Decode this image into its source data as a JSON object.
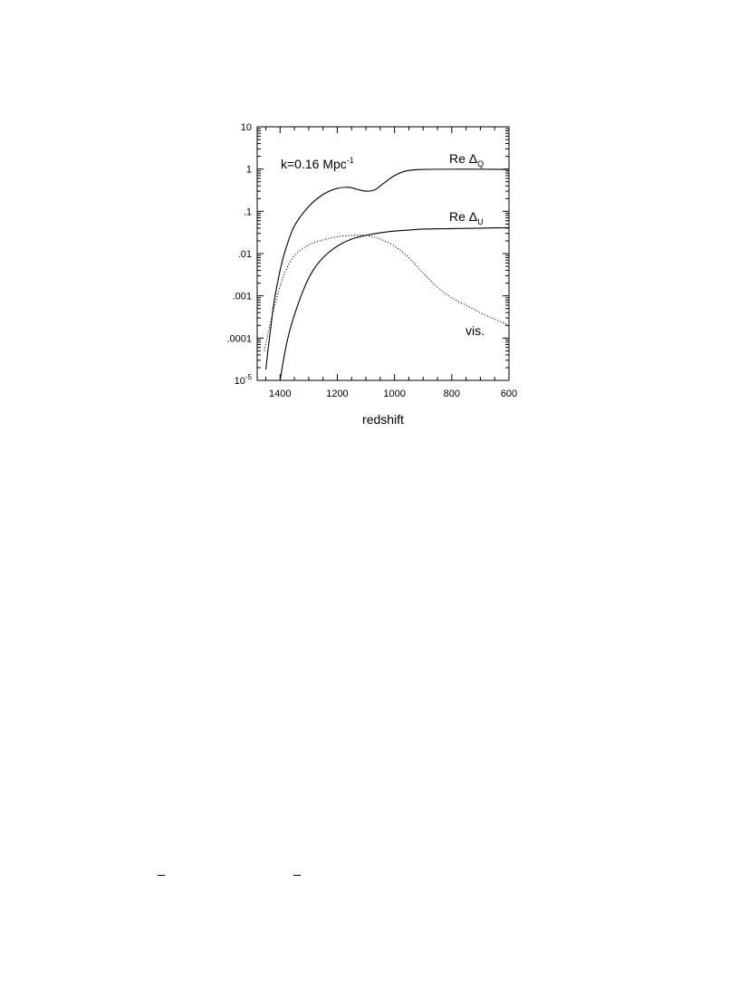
{
  "chart_data": {
    "type": "line",
    "title": "",
    "xlabel": "redshift",
    "ylabel": "",
    "x_axis": {
      "reversed": true,
      "ticks": [
        1400,
        1200,
        1000,
        800,
        600
      ]
    },
    "y_axis": {
      "scale": "log",
      "ticks": [
        {
          "value": 10,
          "label": "10"
        },
        {
          "value": 1,
          "label": "1"
        },
        {
          "value": 0.1,
          "label": ".1"
        },
        {
          "value": 0.01,
          "label": ".01"
        },
        {
          "value": 0.001,
          "label": ".001"
        },
        {
          "value": 0.0001,
          "label": ".0001"
        },
        {
          "value": 1e-05,
          "label_base": "10",
          "label_exp": "-5"
        }
      ]
    },
    "xlim": [
      1480,
      600
    ],
    "ylim": [
      1e-05,
      10
    ],
    "grid": false,
    "annotation_k": {
      "base": "k=0.16 Mpc",
      "exp": "-1"
    },
    "series": [
      {
        "label": {
          "main": "Re Δ",
          "sub": "Q"
        },
        "style": "solid",
        "points": [
          [
            1450,
            1.8e-05
          ],
          [
            1440,
            7e-05
          ],
          [
            1430,
            0.00025
          ],
          [
            1420,
            0.0008
          ],
          [
            1400,
            0.004
          ],
          [
            1380,
            0.013
          ],
          [
            1350,
            0.045
          ],
          [
            1300,
            0.13
          ],
          [
            1250,
            0.25
          ],
          [
            1200,
            0.35
          ],
          [
            1160,
            0.37
          ],
          [
            1130,
            0.33
          ],
          [
            1100,
            0.3
          ],
          [
            1070,
            0.32
          ],
          [
            1040,
            0.45
          ],
          [
            1000,
            0.7
          ],
          [
            960,
            0.9
          ],
          [
            900,
            0.98
          ],
          [
            800,
            0.99
          ],
          [
            700,
            0.99
          ],
          [
            600,
            0.98
          ]
        ]
      },
      {
        "label": {
          "main": "Re Δ",
          "sub": "U"
        },
        "style": "solid",
        "points": [
          [
            1400,
            1e-05
          ],
          [
            1385,
            4e-05
          ],
          [
            1370,
            0.00012
          ],
          [
            1350,
            0.00035
          ],
          [
            1320,
            0.0013
          ],
          [
            1290,
            0.0035
          ],
          [
            1250,
            0.008
          ],
          [
            1200,
            0.015
          ],
          [
            1150,
            0.022
          ],
          [
            1100,
            0.027
          ],
          [
            1050,
            0.031
          ],
          [
            1000,
            0.034
          ],
          [
            950,
            0.036
          ],
          [
            900,
            0.038
          ],
          [
            800,
            0.039
          ],
          [
            700,
            0.04
          ],
          [
            600,
            0.041
          ]
        ]
      },
      {
        "label": {
          "main": "vis.",
          "sub": ""
        },
        "style": "dotted",
        "points": [
          [
            1455,
            5e-05
          ],
          [
            1440,
            0.00015
          ],
          [
            1420,
            0.00055
          ],
          [
            1400,
            0.0017
          ],
          [
            1380,
            0.004
          ],
          [
            1350,
            0.009
          ],
          [
            1300,
            0.016
          ],
          [
            1250,
            0.021
          ],
          [
            1200,
            0.025
          ],
          [
            1150,
            0.027
          ],
          [
            1100,
            0.027
          ],
          [
            1050,
            0.022
          ],
          [
            1000,
            0.015
          ],
          [
            950,
            0.008
          ],
          [
            900,
            0.0035
          ],
          [
            850,
            0.0016
          ],
          [
            800,
            0.0009
          ],
          [
            750,
            0.0006
          ],
          [
            700,
            0.0004
          ],
          [
            650,
            0.00028
          ],
          [
            600,
            0.0002
          ]
        ]
      }
    ]
  }
}
